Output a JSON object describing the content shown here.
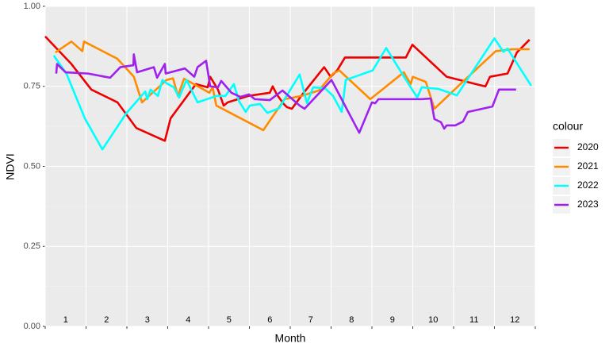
{
  "chart_data": {
    "type": "line",
    "x_label": "Month",
    "y_label": "NDVI",
    "legend_title": "colour",
    "month_labels": [
      "1",
      "2",
      "3",
      "4",
      "5",
      "6",
      "7",
      "8",
      "9",
      "10",
      "11",
      "12"
    ],
    "xlim": [
      0,
      12
    ],
    "xticks": [
      0,
      1,
      2,
      3,
      4,
      5,
      6,
      7,
      8,
      9,
      10,
      11,
      12
    ],
    "ylim": [
      0,
      1
    ],
    "yticks": [
      {
        "value": 0,
        "label": "0.00"
      },
      {
        "value": 0.25,
        "label": "0.25"
      },
      {
        "value": 0.5,
        "label": "0.50"
      },
      {
        "value": 0.75,
        "label": "0.75"
      },
      {
        "value": 1,
        "label": "1.00"
      }
    ],
    "grid": true,
    "legend": "right",
    "series": [
      {
        "name": "2020",
        "color": "#ee0000",
        "x": [
          0,
          0.64,
          1.13,
          1.77,
          2.23,
          2.93,
          3.07,
          3.69,
          3.98,
          4.04,
          4.23,
          4.37,
          4.47,
          4.97,
          5.5,
          5.57,
          5.67,
          5.84,
          5.92,
          6.04,
          6.31,
          6.83,
          6.99,
          7.15,
          7.34,
          8.02,
          8.6,
          8.83,
          8.99,
          9.83,
          10.64,
          10.78,
          10.89,
          11.32,
          11.55,
          11.86
        ],
        "values": [
          0.906,
          0.82,
          0.74,
          0.7,
          0.62,
          0.58,
          0.65,
          0.757,
          0.747,
          0.78,
          0.74,
          0.69,
          0.7,
          0.72,
          0.73,
          0.75,
          0.725,
          0.695,
          0.685,
          0.68,
          0.727,
          0.81,
          0.78,
          0.8,
          0.84,
          0.84,
          0.84,
          0.84,
          0.88,
          0.78,
          0.754,
          0.75,
          0.78,
          0.79,
          0.856,
          0.896
        ]
      },
      {
        "name": "2021",
        "color": "#ff8c00",
        "x": [
          0.25,
          0.64,
          0.91,
          0.95,
          1.77,
          2.17,
          2.37,
          2.97,
          3.13,
          3.25,
          3.4,
          4.02,
          4.1,
          4.19,
          5.34,
          5.86,
          6.27,
          6.7,
          7.05,
          7.2,
          7.96,
          8.78,
          8.95,
          9.0,
          9.32,
          9.53,
          10.19,
          11.03,
          11.44,
          11.86
        ],
        "values": [
          0.856,
          0.89,
          0.86,
          0.89,
          0.836,
          0.78,
          0.7,
          0.77,
          0.775,
          0.72,
          0.774,
          0.73,
          0.747,
          0.69,
          0.613,
          0.71,
          0.72,
          0.737,
          0.79,
          0.8,
          0.71,
          0.794,
          0.757,
          0.78,
          0.764,
          0.68,
          0.76,
          0.86,
          0.866,
          0.866
        ]
      },
      {
        "name": "2022",
        "color": "#00ffff",
        "x": [
          0.21,
          0.52,
          0.97,
          1.4,
          1.98,
          2.45,
          2.5,
          2.58,
          2.76,
          2.87,
          2.97,
          3.15,
          3.28,
          3.46,
          3.73,
          4.19,
          4.41,
          4.62,
          4.74,
          4.91,
          5.01,
          5.26,
          5.44,
          5.73,
          6.23,
          6.41,
          6.56,
          6.85,
          7.05,
          7.26,
          7.36,
          8.02,
          8.35,
          8.8,
          9.11,
          9.22,
          9.63,
          10.08,
          11.0,
          11.22,
          11.32,
          11.9
        ],
        "values": [
          0.846,
          0.79,
          0.65,
          0.553,
          0.665,
          0.734,
          0.71,
          0.74,
          0.72,
          0.77,
          0.76,
          0.747,
          0.715,
          0.77,
          0.7,
          0.72,
          0.72,
          0.757,
          0.705,
          0.67,
          0.69,
          0.695,
          0.667,
          0.682,
          0.787,
          0.697,
          0.747,
          0.744,
          0.72,
          0.67,
          0.77,
          0.8,
          0.87,
          0.777,
          0.715,
          0.747,
          0.742,
          0.722,
          0.9,
          0.858,
          0.868,
          0.752
        ]
      },
      {
        "name": "2023",
        "color": "#a020f0",
        "x": [
          0.27,
          0.29,
          0.5,
          1.05,
          1.59,
          1.84,
          2.16,
          2.17,
          2.25,
          2.66,
          2.74,
          2.93,
          2.95,
          3.42,
          3.65,
          3.73,
          3.94,
          4.04,
          4.23,
          4.31,
          4.56,
          4.78,
          4.99,
          5.13,
          5.5,
          5.81,
          6.23,
          6.35,
          7.01,
          7.69,
          8.0,
          8.08,
          8.16,
          9.22,
          9.44,
          9.53,
          9.69,
          9.77,
          9.83,
          10.04,
          10.23,
          10.35,
          10.95,
          11.11,
          11.34,
          11.53
        ],
        "values": [
          0.79,
          0.82,
          0.794,
          0.79,
          0.777,
          0.81,
          0.816,
          0.85,
          0.794,
          0.81,
          0.777,
          0.82,
          0.79,
          0.806,
          0.78,
          0.81,
          0.83,
          0.75,
          0.747,
          0.767,
          0.73,
          0.717,
          0.725,
          0.71,
          0.707,
          0.737,
          0.69,
          0.68,
          0.77,
          0.605,
          0.7,
          0.697,
          0.71,
          0.71,
          0.712,
          0.648,
          0.638,
          0.618,
          0.628,
          0.628,
          0.64,
          0.67,
          0.687,
          0.74,
          0.74,
          0.74
        ]
      }
    ]
  }
}
